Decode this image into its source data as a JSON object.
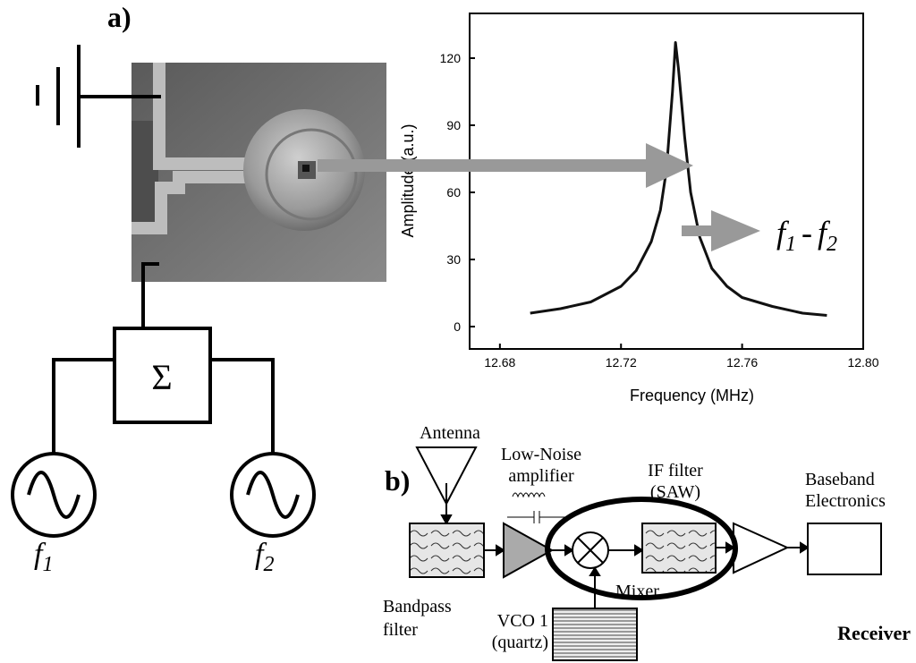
{
  "panel_a": {
    "label": "a)",
    "summer": "Σ",
    "source_labels": [
      {
        "base": "f",
        "sub": "1"
      },
      {
        "base": "f",
        "sub": "2"
      }
    ]
  },
  "chart_data": {
    "type": "line",
    "xlabel": "Frequency (MHz)",
    "ylabel": "Amplitude (a.u.)",
    "x": [
      12.69,
      12.7,
      12.71,
      12.72,
      12.725,
      12.73,
      12.733,
      12.735,
      12.737,
      12.738,
      12.739,
      12.741,
      12.743,
      12.746,
      12.75,
      12.755,
      12.76,
      12.77,
      12.78,
      12.788
    ],
    "series": [
      {
        "color": "#111111",
        "values": [
          6,
          8,
          11,
          18,
          25,
          38,
          52,
          70,
          105,
          127,
          115,
          85,
          60,
          40,
          26,
          18,
          13,
          9,
          6,
          5
        ]
      }
    ],
    "xlim": [
      12.67,
      12.8
    ],
    "xticks": [
      12.68,
      12.72,
      12.76,
      {
        "value": 12.8,
        "label": "12.80"
      }
    ],
    "ylim": [
      -10,
      140
    ],
    "yticks": [
      0,
      30,
      60,
      90,
      120
    ],
    "annotation": [
      "f",
      "1",
      "-",
      "f",
      "2"
    ]
  },
  "panel_b": {
    "label": "b)",
    "antenna": "Antenna",
    "lna": [
      "Low-Noise",
      "amplifier"
    ],
    "if_filter": [
      "IF filter",
      "(SAW)"
    ],
    "baseband": [
      "Baseband",
      "Electronics"
    ],
    "bandpass": [
      "Bandpass",
      "filter"
    ],
    "vco": [
      "VCO 1",
      "(quartz)"
    ],
    "mixer": "Mixer",
    "receiver": "Receiver"
  }
}
